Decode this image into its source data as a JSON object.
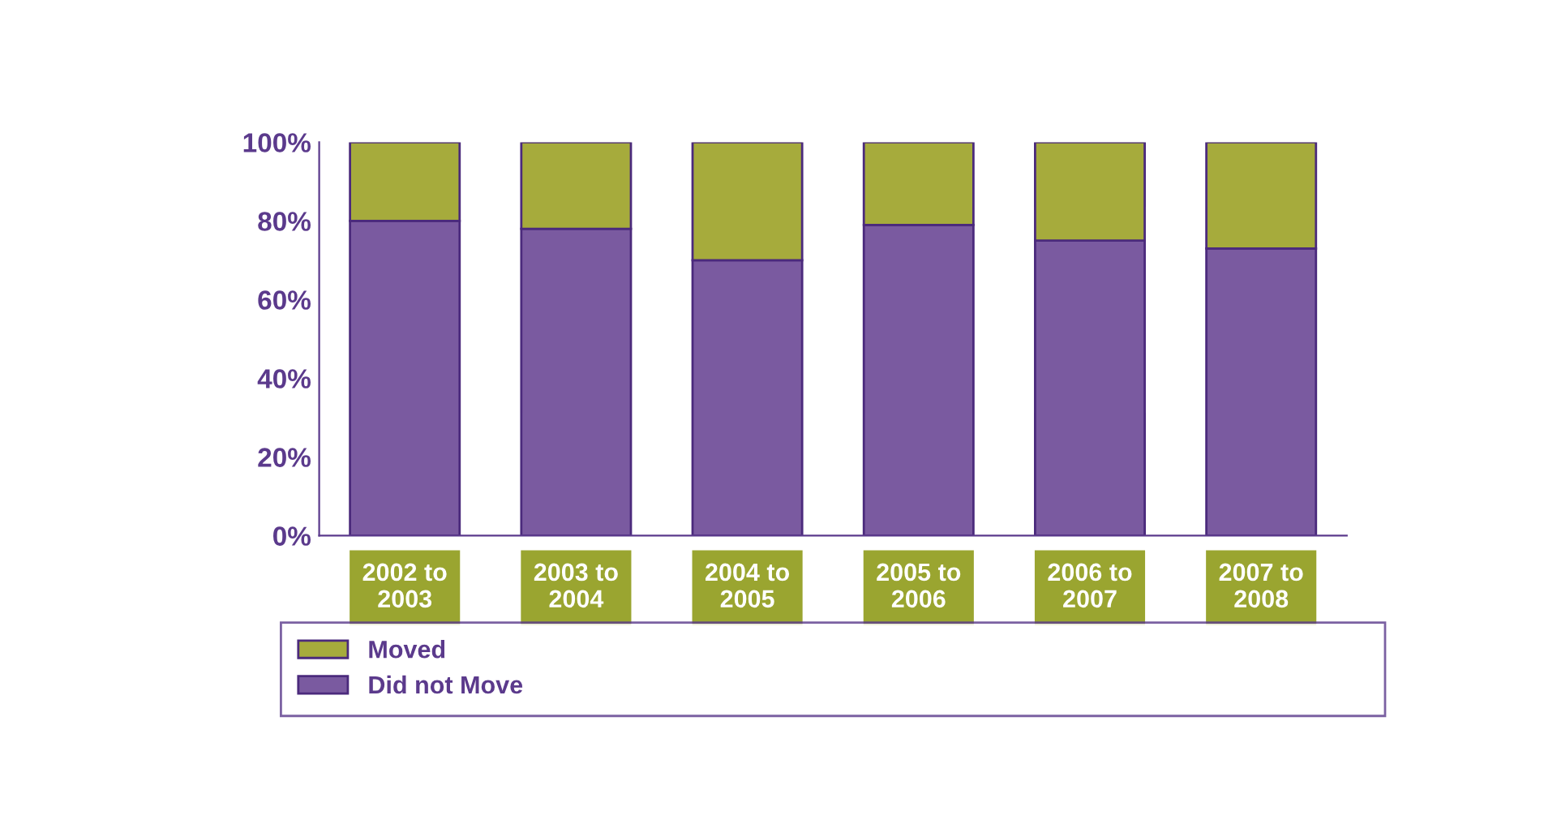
{
  "chart_data": {
    "type": "bar",
    "stacked": true,
    "categories": [
      "2002 to\n2003",
      "2003 to\n2004",
      "2004 to\n2005",
      "2005 to\n2006",
      "2006 to\n2007",
      "2007 to\n2008"
    ],
    "series": [
      {
        "name": "Did not Move",
        "color": "#7a5aa0",
        "values": [
          80,
          78,
          70,
          79,
          75,
          73
        ]
      },
      {
        "name": "Moved",
        "color": "#a6ab3c",
        "values": [
          20,
          22,
          30,
          21,
          25,
          27
        ]
      }
    ],
    "ylim": [
      0,
      100
    ],
    "yticks": [
      {
        "value": 0,
        "label": "0%"
      },
      {
        "value": 20,
        "label": "20%"
      },
      {
        "value": 40,
        "label": "40%"
      },
      {
        "value": 60,
        "label": "60%"
      },
      {
        "value": 80,
        "label": "80%"
      },
      {
        "value": 100,
        "label": "100%"
      }
    ],
    "grid": false,
    "legend": "bottom"
  }
}
